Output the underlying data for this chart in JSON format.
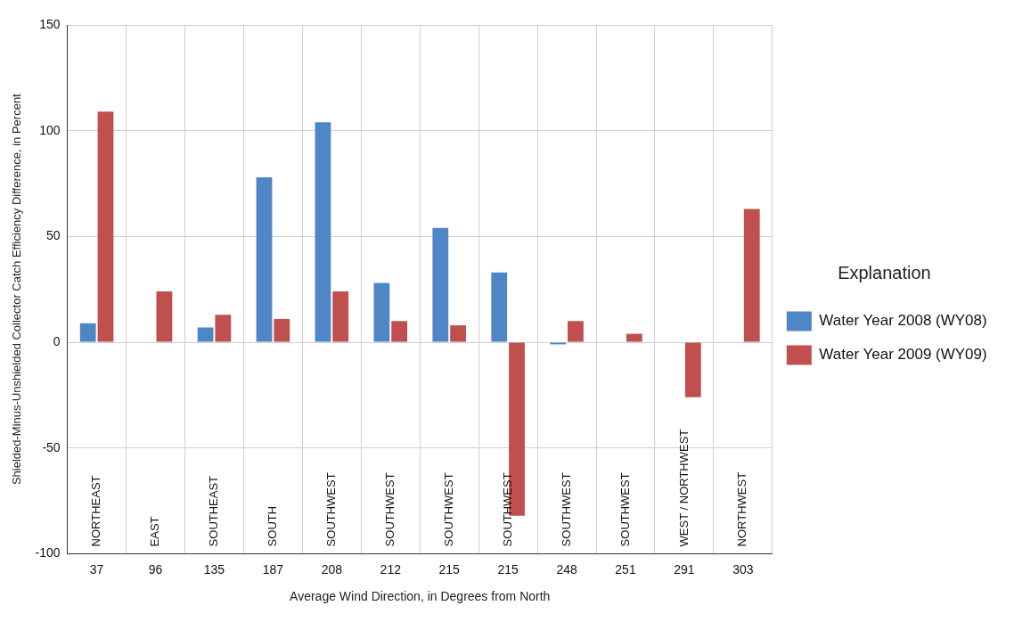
{
  "chart_data": {
    "type": "bar",
    "xlabel": "Average Wind Direction, in Degrees from North",
    "ylabel": "Shielded-Minus-Unshielded Collector Catch Efficiency Difference, in Percent",
    "categories": [
      "37",
      "96",
      "135",
      "187",
      "208",
      "212",
      "215",
      "215",
      "248",
      "251",
      "291",
      "303"
    ],
    "series": [
      {
        "name": "Water Year 2008 (WY08)",
        "color": "#4f86c6",
        "values": [
          9,
          0,
          7,
          78,
          104,
          28,
          54,
          33,
          -1,
          null,
          null,
          null
        ]
      },
      {
        "name": "Water Year 2009 (WY09)",
        "color": "#c0504d",
        "values": [
          109,
          24,
          13,
          11,
          24,
          10,
          8,
          -82,
          10,
          4,
          -26,
          63
        ]
      }
    ],
    "annotations": [
      "NORTHEAST",
      "EAST",
      "SOUTHEAST",
      "SOUTH",
      "SOUTHWEST",
      "SOUTHWEST",
      "SOUTHWEST",
      "SOUTHWEST",
      "SOUTHWEST",
      "SOUTHWEST",
      "WEST / NORTHWEST",
      "NORTHWEST"
    ],
    "ylim": [
      -100,
      150
    ],
    "yticks": [
      -100,
      -50,
      0,
      50,
      100,
      150
    ],
    "grid": true,
    "legend": "right",
    "legend_title": "Explanation"
  }
}
